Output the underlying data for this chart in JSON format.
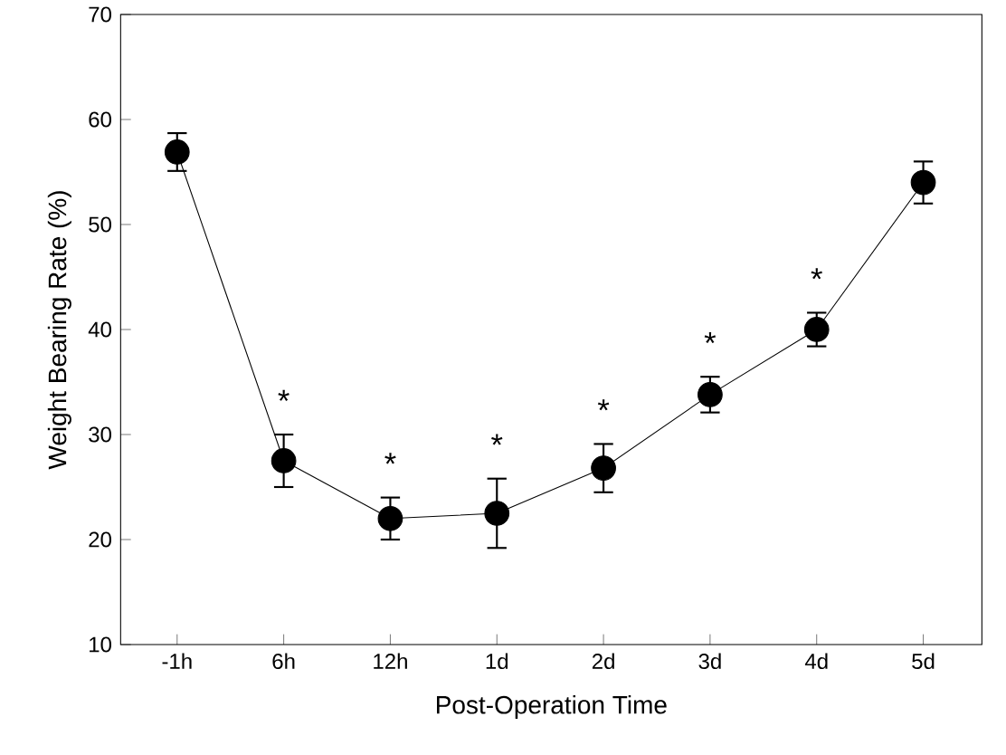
{
  "chart_data": {
    "type": "line",
    "xlabel": "Post-Operation Time",
    "ylabel": "Weight Bearing Rate (%)",
    "categories": [
      "-1h",
      "6h",
      "12h",
      "1d",
      "2d",
      "3d",
      "4d",
      "5d"
    ],
    "values": [
      56.9,
      27.5,
      22,
      22.5,
      26.8,
      33.8,
      40,
      54
    ],
    "errors": [
      1.8,
      2.5,
      2,
      3.3,
      2.3,
      1.7,
      1.6,
      2
    ],
    "color": "#000000",
    "marker": "circle",
    "line_style": "solid",
    "grid": false,
    "ylim": [
      10,
      70
    ],
    "yticks": [
      10,
      20,
      30,
      40,
      50,
      60,
      70
    ],
    "annotations": [
      "*",
      "*",
      "*",
      "*",
      "*",
      "*"
    ]
  }
}
